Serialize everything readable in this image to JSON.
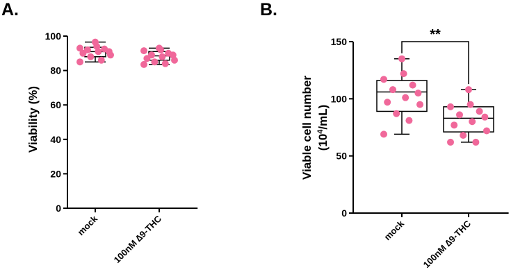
{
  "chart_data": [
    {
      "panel_label": "A.",
      "type": "box",
      "ylabel": "Viability (%)",
      "ylim": [
        0,
        100
      ],
      "yticks": [
        0,
        20,
        40,
        60,
        80,
        100
      ],
      "categories": [
        "mock",
        "100nM ∆9-THC"
      ],
      "boxes": [
        {
          "min": 85,
          "q1": 88,
          "median": 91,
          "q3": 93.5,
          "max": 96.5
        },
        {
          "min": 83.5,
          "q1": 86,
          "median": 88.5,
          "q3": 91,
          "max": 93
        }
      ],
      "points": [
        [
          85,
          86,
          88,
          89,
          90,
          91,
          91,
          92,
          92.5,
          93,
          94,
          96.5
        ],
        [
          83.5,
          84,
          85,
          86,
          87,
          88,
          89,
          89,
          90,
          91.5,
          92,
          93
        ]
      ],
      "point_color": "#f0689a"
    },
    {
      "panel_label": "B.",
      "type": "box",
      "ylabel": [
        "Viable cell number",
        "(10",
        "4",
        "/mL)"
      ],
      "ylim": [
        0,
        150
      ],
      "yticks": [
        0,
        50,
        100,
        150
      ],
      "categories": [
        "mock",
        "100nM ∆9-THC"
      ],
      "boxes": [
        {
          "min": 69,
          "q1": 89,
          "median": 106,
          "q3": 116,
          "max": 135
        },
        {
          "min": 62,
          "q1": 71,
          "median": 83,
          "q3": 93,
          "max": 108
        }
      ],
      "points": [
        [
          69,
          81,
          87,
          95,
          97,
          101,
          105,
          108,
          112,
          117,
          122,
          135
        ],
        [
          62,
          62,
          68,
          72,
          77,
          80,
          84,
          86,
          89,
          93,
          95,
          108
        ]
      ],
      "point_color": "#f0689a",
      "significance": "**"
    }
  ]
}
